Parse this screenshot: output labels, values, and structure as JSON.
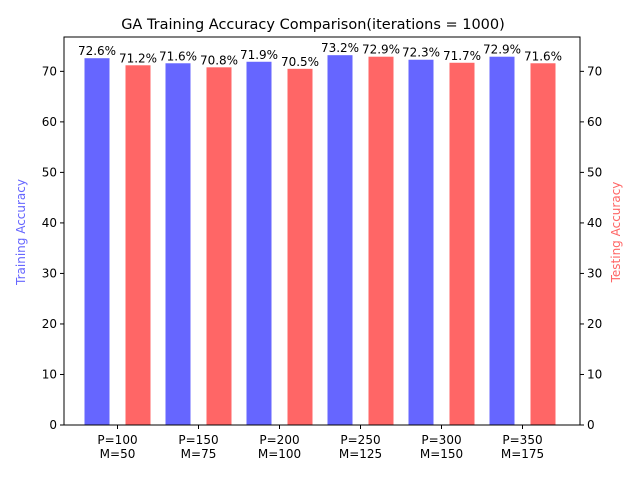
{
  "chart_data": {
    "type": "bar",
    "title": "GA Training Accuracy Comparison(iterations = 1000)",
    "categories": [
      [
        "P=100",
        "M=50"
      ],
      [
        "P=150",
        "M=75"
      ],
      [
        "P=200",
        "M=100"
      ],
      [
        "P=250",
        "M=125"
      ],
      [
        "P=300",
        "M=150"
      ],
      [
        "P=350",
        "M=175"
      ]
    ],
    "series": [
      {
        "values": [
          72.6,
          71.6,
          71.9,
          73.2,
          72.3,
          72.9
        ],
        "labels": [
          "72.6%",
          "71.6%",
          "71.9%",
          "73.2%",
          "72.3%",
          "72.9%"
        ],
        "color": "#6666ff",
        "axis": "left"
      },
      {
        "values": [
          71.2,
          70.8,
          70.5,
          72.9,
          71.7,
          71.6
        ],
        "labels": [
          "71.2%",
          "70.8%",
          "70.5%",
          "72.9%",
          "71.7%",
          "71.6%"
        ],
        "color": "#ff6666",
        "axis": "right"
      }
    ],
    "ylabel_left": "Training Accuracy",
    "ylabel_right": "Testing Accuracy",
    "ylabel_left_color": "#6666ff",
    "ylabel_right_color": "#ff6666",
    "ylim": [
      0,
      76.8
    ],
    "yticks": [
      0,
      10,
      20,
      30,
      40,
      50,
      60,
      70
    ],
    "grid": false
  }
}
